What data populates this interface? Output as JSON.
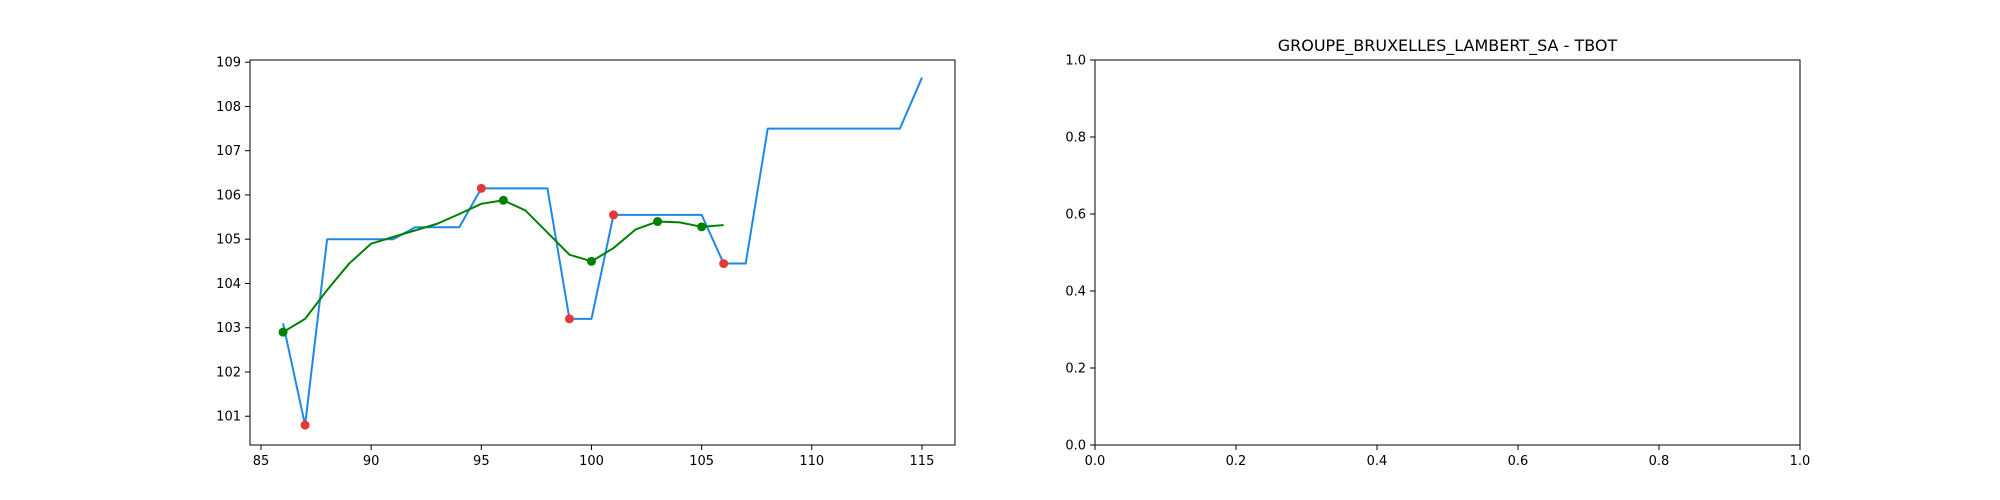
{
  "figure": {
    "background": "#ffffff"
  },
  "chart_data": [
    {
      "type": "line",
      "title": "",
      "xlabel": "",
      "ylabel": "",
      "xlim": [
        84.5,
        116.5
      ],
      "ylim": [
        100.35,
        109.05
      ],
      "xticks": [
        85,
        90,
        95,
        100,
        105,
        110,
        115
      ],
      "xtick_labels": [
        "85",
        "90",
        "95",
        "100",
        "105",
        "110",
        "115"
      ],
      "yticks": [
        101,
        102,
        103,
        104,
        105,
        106,
        107,
        108,
        109
      ],
      "ytick_labels": [
        "101",
        "102",
        "103",
        "104",
        "105",
        "106",
        "107",
        "108",
        "109"
      ],
      "grid": false,
      "legend": "none",
      "series": [
        {
          "kind": "line",
          "color": "#1e88e5",
          "x": [
            86,
            87,
            88,
            89,
            90,
            91,
            92,
            93,
            94,
            95,
            96,
            97,
            98,
            99,
            100,
            101,
            102,
            103,
            104,
            105,
            106,
            107,
            108,
            109,
            110,
            111,
            112,
            113,
            114,
            115
          ],
          "y": [
            103.1,
            100.8,
            105.0,
            105.0,
            105.0,
            105.0,
            105.27,
            105.27,
            105.27,
            106.15,
            106.15,
            106.15,
            106.15,
            103.2,
            103.2,
            105.55,
            105.55,
            105.55,
            105.55,
            105.55,
            104.45,
            104.45,
            107.5,
            107.5,
            107.5,
            107.5,
            107.5,
            107.5,
            107.5,
            108.65
          ]
        },
        {
          "kind": "line",
          "color": "#008000",
          "x": [
            86,
            87,
            88,
            89,
            90,
            91,
            92,
            93,
            94,
            95,
            96,
            97,
            98,
            99,
            100,
            101,
            102,
            103,
            104,
            105,
            106
          ],
          "y": [
            102.9,
            103.2,
            103.85,
            104.45,
            104.9,
            105.05,
            105.2,
            105.35,
            105.57,
            105.8,
            105.88,
            105.65,
            105.15,
            104.65,
            104.5,
            104.8,
            105.22,
            105.4,
            105.38,
            105.28,
            105.32
          ]
        },
        {
          "kind": "scatter",
          "color": "#e53935",
          "x": [
            87,
            95,
            99,
            101,
            106
          ],
          "y": [
            100.8,
            106.15,
            103.2,
            105.55,
            104.45
          ]
        },
        {
          "kind": "scatter",
          "color": "#008000",
          "x": [
            86,
            96,
            100,
            103,
            105
          ],
          "y": [
            102.9,
            105.88,
            104.5,
            105.4,
            105.28
          ]
        }
      ]
    },
    {
      "type": "line",
      "title": "GROUPE_BRUXELLES_LAMBERT_SA - TBOT",
      "xlabel": "",
      "ylabel": "",
      "xlim": [
        0,
        1
      ],
      "ylim": [
        0,
        1
      ],
      "xticks": [
        0,
        0.2,
        0.4,
        0.6,
        0.8,
        1.0
      ],
      "xtick_labels": [
        "0.0",
        "0.2",
        "0.4",
        "0.6",
        "0.8",
        "1.0"
      ],
      "yticks": [
        0,
        0.2,
        0.4,
        0.6,
        0.8,
        1.0
      ],
      "ytick_labels": [
        "0.0",
        "0.2",
        "0.4",
        "0.6",
        "0.8",
        "1.0"
      ],
      "grid": false,
      "legend": "none",
      "series": []
    }
  ]
}
